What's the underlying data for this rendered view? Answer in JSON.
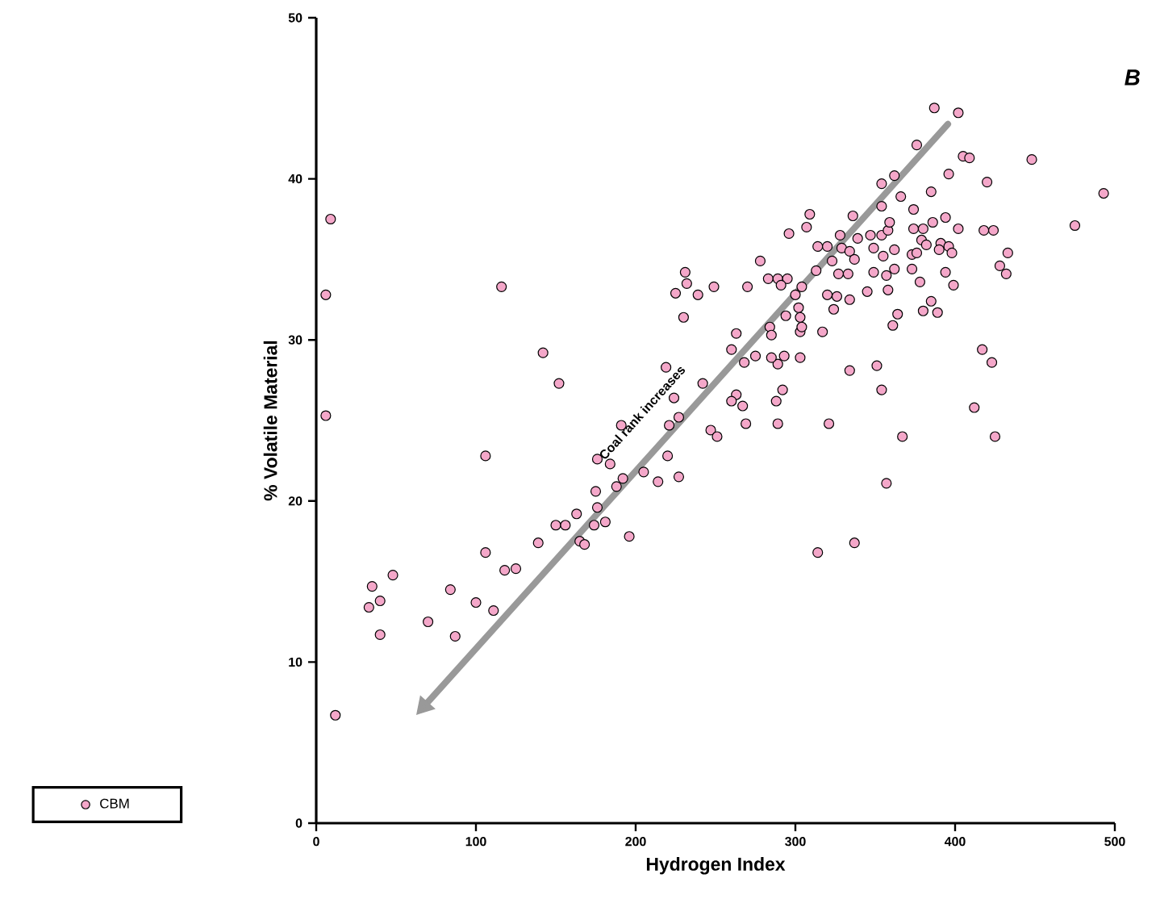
{
  "chart_data": {
    "type": "scatter",
    "xlabel": "Hydrogen Index",
    "ylabel": "% Volatile Material",
    "annotations": [
      "B",
      "Coal rank increases"
    ],
    "xlim": [
      0,
      500
    ],
    "ylim": [
      0,
      50
    ],
    "xticks": [
      0,
      100,
      200,
      300,
      400,
      500
    ],
    "yticks": [
      0,
      10,
      20,
      30,
      40,
      50
    ],
    "marker": "circle",
    "legend": "bottom left",
    "series": [
      {
        "name": "CBM",
        "color": "#f4a7c9",
        "x": [
          6,
          9,
          6,
          12,
          35,
          40,
          33,
          40,
          48,
          70,
          84,
          87,
          100,
          111,
          106,
          106,
          116,
          118,
          125,
          142,
          152,
          139,
          150,
          156,
          163,
          165,
          168,
          174,
          176,
          175,
          181,
          196,
          188,
          192,
          191,
          205,
          214,
          220,
          227,
          219,
          224,
          227,
          221,
          225,
          231,
          232,
          230,
          239,
          249,
          242,
          247,
          251,
          176,
          184,
          387,
          402,
          376,
          405,
          409,
          448,
          493,
          475,
          420,
          396,
          362,
          354,
          366,
          385,
          354,
          374,
          336,
          309,
          307,
          296,
          394,
          402,
          418,
          424,
          433,
          428,
          432,
          417,
          423,
          412,
          425,
          367,
          357,
          337,
          314,
          321,
          354,
          351,
          334,
          361,
          364,
          380,
          389,
          385,
          399,
          394,
          378,
          358,
          317,
          303,
          304,
          303,
          293,
          289,
          285,
          275,
          268,
          263,
          260,
          284,
          285,
          292,
          288,
          289,
          269,
          263,
          260,
          267,
          270,
          278,
          283,
          289,
          295,
          291,
          304,
          300,
          302,
          294,
          313,
          314,
          320,
          323,
          320,
          324,
          326,
          334,
          333,
          327,
          329,
          328,
          334,
          337,
          339,
          345,
          347,
          349,
          355,
          354,
          358,
          359,
          362,
          349,
          357,
          362,
          373,
          373,
          374,
          380,
          379,
          382,
          391,
          396,
          390,
          398,
          376,
          386,
          303
        ],
        "values": [
          32.8,
          37.5,
          25.3,
          6.7,
          14.7,
          13.8,
          13.4,
          11.7,
          15.4,
          12.5,
          14.5,
          11.6,
          13.7,
          13.2,
          16.8,
          22.8,
          33.3,
          15.7,
          15.8,
          29.2,
          27.3,
          17.4,
          18.5,
          18.5,
          19.2,
          17.5,
          17.3,
          18.5,
          19.6,
          20.6,
          18.7,
          17.8,
          20.9,
          21.4,
          24.7,
          21.8,
          21.2,
          22.8,
          21.5,
          28.3,
          26.4,
          25.2,
          24.7,
          32.9,
          34.2,
          33.5,
          31.4,
          32.8,
          33.3,
          27.3,
          24.4,
          24.0,
          22.6,
          22.3,
          44.4,
          44.1,
          42.1,
          41.4,
          41.3,
          41.2,
          39.1,
          37.1,
          39.8,
          40.3,
          40.2,
          39.7,
          38.9,
          39.2,
          38.3,
          38.1,
          37.7,
          37.8,
          37.0,
          36.6,
          37.6,
          36.9,
          36.8,
          36.8,
          35.4,
          34.6,
          34.1,
          29.4,
          28.6,
          25.8,
          24.0,
          24.0,
          21.1,
          17.4,
          16.8,
          24.8,
          26.9,
          28.4,
          28.1,
          30.9,
          31.6,
          31.8,
          31.7,
          32.4,
          33.4,
          34.2,
          33.6,
          33.1,
          30.5,
          30.5,
          30.8,
          28.9,
          29.0,
          28.5,
          28.9,
          29.0,
          28.6,
          30.4,
          29.4,
          30.8,
          30.3,
          26.9,
          26.2,
          24.8,
          24.8,
          26.6,
          26.2,
          25.9,
          33.3,
          34.9,
          33.8,
          33.8,
          33.8,
          33.4,
          33.3,
          32.8,
          32.0,
          31.5,
          34.3,
          35.8,
          35.8,
          34.9,
          32.8,
          31.9,
          32.7,
          32.5,
          34.1,
          34.1,
          35.7,
          36.5,
          35.5,
          35.0,
          36.3,
          33.0,
          36.5,
          35.7,
          35.2,
          36.5,
          36.8,
          37.3,
          35.6,
          34.2,
          34.0,
          34.4,
          35.3,
          34.4,
          36.9,
          36.9,
          36.2,
          35.9,
          36.0,
          35.8,
          35.6,
          35.4,
          35.4,
          37.3,
          31.4
        ]
      }
    ]
  }
}
